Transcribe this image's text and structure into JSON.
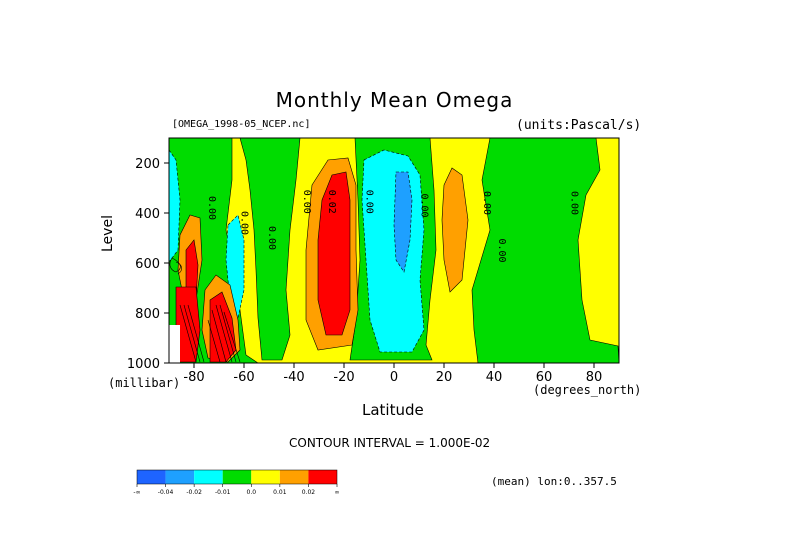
{
  "chart_data": {
    "type": "heatmap",
    "title": "Monthly Mean Omega",
    "dataset_label": "[OMEGA_1998-05_NCEP.nc]",
    "units_label": "(units:Pascal/s)",
    "xlabel": "Latitude",
    "x_units": "(degrees_north)",
    "ylabel": "Level",
    "y_units": "(millibar)",
    "xlim": [
      -90,
      90
    ],
    "ylim": [
      1000,
      100
    ],
    "x_ticks": [
      -80,
      -60,
      -40,
      -20,
      0,
      20,
      40,
      60,
      80
    ],
    "y_ticks": [
      200,
      400,
      600,
      800,
      1000
    ],
    "contour_interval": "CONTOUR INTERVAL = 1.000E-02",
    "mean_note": "(mean) lon:0..357.5",
    "contour_labels": [
      {
        "text": "0.00",
        "lat": -74,
        "level": 380
      },
      {
        "text": "0.00",
        "lat": -61,
        "level": 440
      },
      {
        "text": "0.00",
        "lat": -50,
        "level": 500
      },
      {
        "text": "0.00",
        "lat": -36,
        "level": 355
      },
      {
        "text": "0.02",
        "lat": -26,
        "level": 355
      },
      {
        "text": "0.00",
        "lat": -11,
        "level": 355
      },
      {
        "text": "0.00",
        "lat": 11,
        "level": 370
      },
      {
        "text": "0.00",
        "lat": 36,
        "level": 360
      },
      {
        "text": "0.00",
        "lat": 42,
        "level": 550
      },
      {
        "text": "0.00",
        "lat": 71,
        "level": 360
      }
    ],
    "legend": {
      "colors": [
        "#1e64ff",
        "#1ea0ff",
        "#00ffff",
        "#00dc00",
        "#ffff00",
        "#ffa000",
        "#ff0000"
      ],
      "labels": [
        "-∞",
        "-0.04",
        "-0.02",
        "-0.01",
        "0.0",
        "0.01",
        "0.02",
        "∞"
      ]
    }
  }
}
